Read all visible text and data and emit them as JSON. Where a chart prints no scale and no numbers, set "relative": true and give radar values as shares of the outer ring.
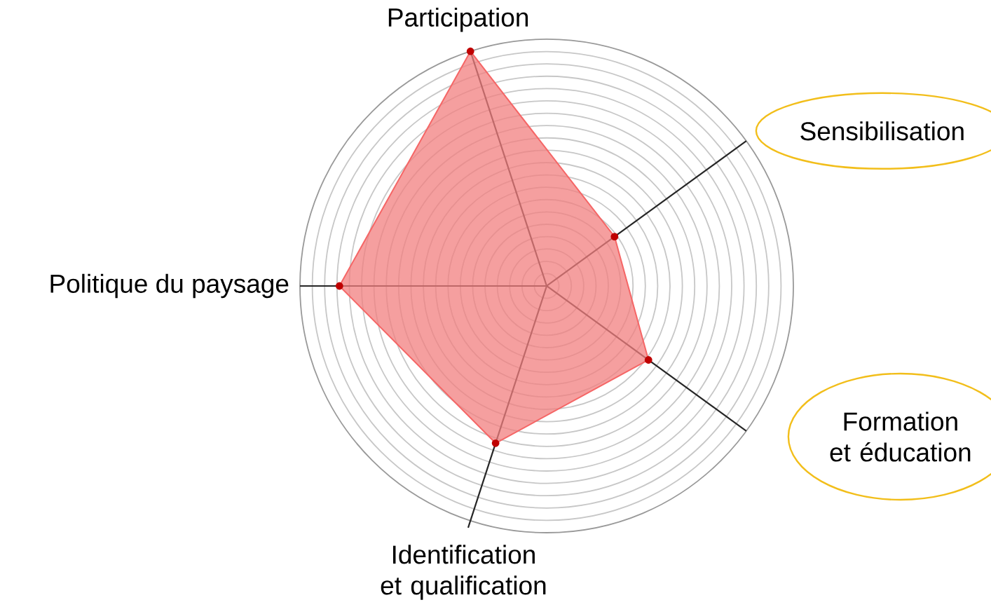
{
  "chart_data": {
    "type": "radar",
    "relative": true,
    "grid": true,
    "marker": "circle",
    "categories": [
      "Participation",
      "Sensibilisation",
      "Formation et éducation",
      "Identification et qualification",
      "Politique du paysage"
    ],
    "series": [
      {
        "color": "#f27f7f",
        "values": [
          1.0,
          0.34,
          0.51,
          0.67,
          0.84
        ]
      }
    ]
  }
}
